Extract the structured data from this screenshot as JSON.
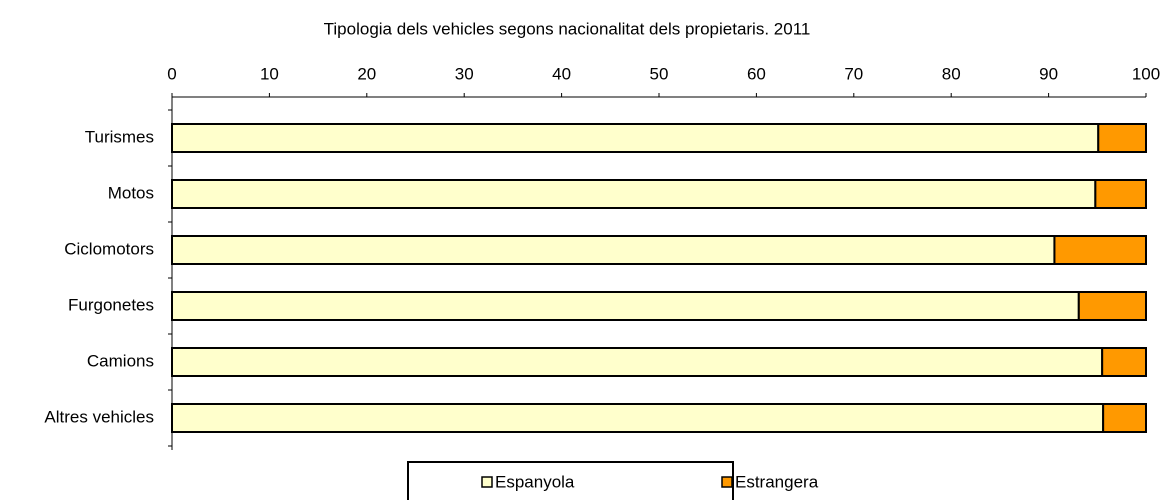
{
  "chart_data": {
    "type": "bar",
    "orientation": "horizontal",
    "stacked": true,
    "title": "Tipologia dels vehicles segons nacionalitat dels propietaris. 2011",
    "categories": [
      "Turismes",
      "Motos",
      "Ciclomotors",
      "Furgonetes",
      "Camions",
      "Altres vehicles"
    ],
    "series": [
      {
        "name": "Espanyola",
        "color": "#ffffcc",
        "values": [
          95.1,
          94.8,
          90.6,
          93.1,
          95.5,
          95.6
        ]
      },
      {
        "name": "Estrangera",
        "color": "#ff9900",
        "values": [
          4.9,
          5.2,
          9.4,
          6.9,
          4.5,
          4.4
        ]
      }
    ],
    "xlim": [
      0,
      100
    ],
    "xticks": [
      0,
      10,
      20,
      30,
      40,
      50,
      60,
      70,
      80,
      90,
      100
    ],
    "legend": "bottom"
  }
}
